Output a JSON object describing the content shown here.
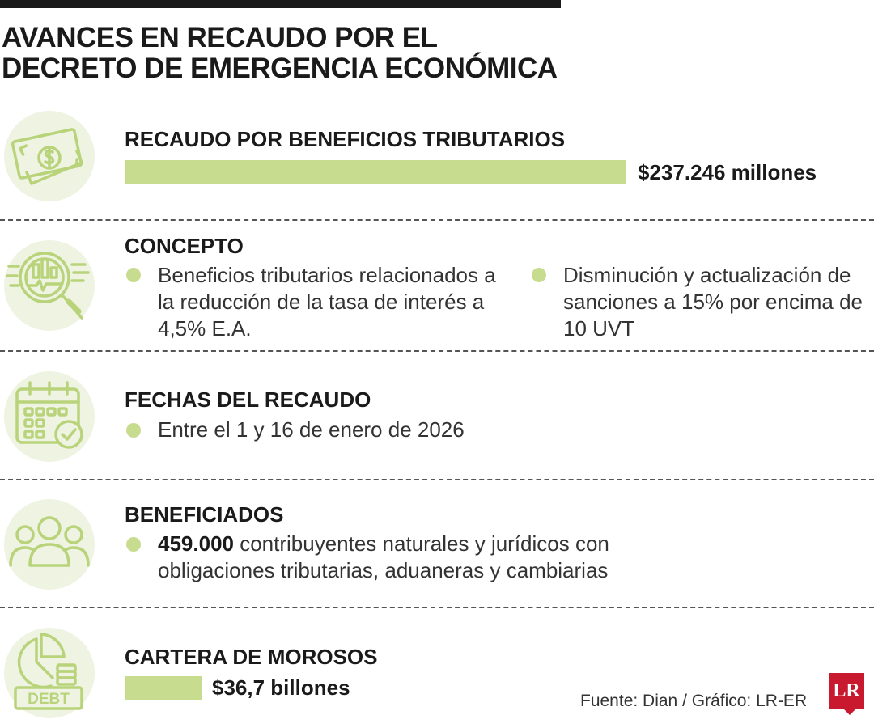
{
  "title": {
    "line1": "AVANCES EN RECAUDO POR EL",
    "line2": "DECRETO DE EMERGENCIA ECONÓMICA"
  },
  "sections": {
    "recaudo": {
      "heading": "RECAUDO POR BENEFICIOS TRIBUTARIOS",
      "value": "$237.246 millones",
      "icon": "money-bill-icon"
    },
    "concepto": {
      "heading": "CONCEPTO",
      "item1": "Beneficios tributarios relacionados a la reducción de la tasa de interés a 4,5% E.A.",
      "item2": "Disminución y actualización de sanciones a 15% por encima de 10 UVT",
      "icon": "magnifier-chart-icon"
    },
    "fechas": {
      "heading": "FECHAS DEL RECAUDO",
      "item1": "Entre el 1 y 16 de enero de 2026",
      "icon": "calendar-check-icon"
    },
    "beneficiados": {
      "heading": "BENEFICIADOS",
      "bold": "459.000",
      "item1_rest": " contribuyentes naturales y jurídicos con obligaciones tributarias, aduaneras y cambiarias",
      "icon": "people-icon"
    },
    "cartera": {
      "heading": "CARTERA DE MOROSOS",
      "value": "$36,7 billones",
      "icon": "debt-pie-icon",
      "debt_label": "DEBT"
    }
  },
  "source": "Fuente: Dian / Gráfico: LR-ER",
  "logo": "LR",
  "colors": {
    "accent": "#c8dc8f",
    "icon_bg": "#eef3e2",
    "icon_stroke": "#b9d37a",
    "brand": "#c9192e"
  }
}
